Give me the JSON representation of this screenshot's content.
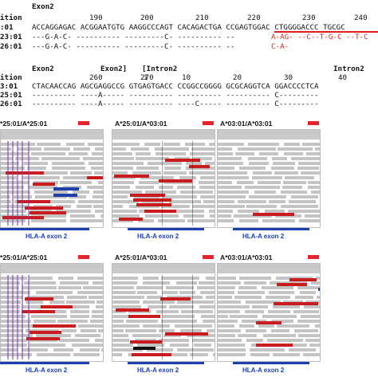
{
  "alignment": {
    "block1": {
      "header": "Exon2",
      "position_label": "ition",
      "positions": [
        "190",
        "200",
        "210",
        "220",
        "230",
        "240"
      ],
      "ref_label": ":01",
      "seq_label_a": "23:01",
      "seq_label_b": "26:01",
      "ref_seq": "ACCAGGAGAC ACGGAATGTG AAGGCCCAGT CACAGACTGA CCGAGTGGAC CTGGGGACCC TGCGC",
      "var_a_pre": "---G-A-C- ---------- ---------C- ---------- --",
      "var_a_red": "A-AG- --C--T-G-C --T-C",
      "var_b_pre": "---G-A-C- ---------- ---------C- ---------- --",
      "var_b_red": "C-A-"
    },
    "block2": {
      "header_a": "Exon2",
      "header_b": "Exon2]",
      "header_c": "[Intron2",
      "header_d": "Intron2",
      "position_label": "ition",
      "positions": [
        "260",
        "270",
        "1",
        "10",
        "20",
        "30",
        "40"
      ],
      "ref_label": "3:01",
      "seq_label_a": "25:01",
      "seq_label_b": "26:01",
      "ref_seq": "CTACAACCAG AGCGAGGCCG GTGAGTGACC CCGGCCGGGG GCGCAGGTCA GGACCCCTCA",
      "var_a": "---------- ----A----- ---------- ---------- ---------- C---------",
      "var_b": "---------- ----A----- ---------- ----C----- ---------- C---------"
    }
  },
  "panels": [
    {
      "title": "*25:01/A*25:01",
      "exon_label": "HLA-A exon 2"
    },
    {
      "title": "A*25:01/A*03:01",
      "exon_label": "HLA-A exon 2"
    },
    {
      "title": "A*03:01/A*03:01",
      "exon_label": "HLA-A exon 2"
    },
    {
      "title": "*25:01/A*25:01",
      "exon_label": "HLA-A exon 2"
    },
    {
      "title": "A*25:01/A*03:01",
      "exon_label": "HLA-A exon 2"
    },
    {
      "title": "A*03:01/A*03:01",
      "exon_label": "HLA-A exon 2"
    }
  ],
  "colors": {
    "highlight_red": "#e0201b",
    "exon_blue": "#1c3fb0",
    "read_gray": "#c4c4c4",
    "read_red": "#c91c1c",
    "read_blue": "#1e3fa8"
  }
}
